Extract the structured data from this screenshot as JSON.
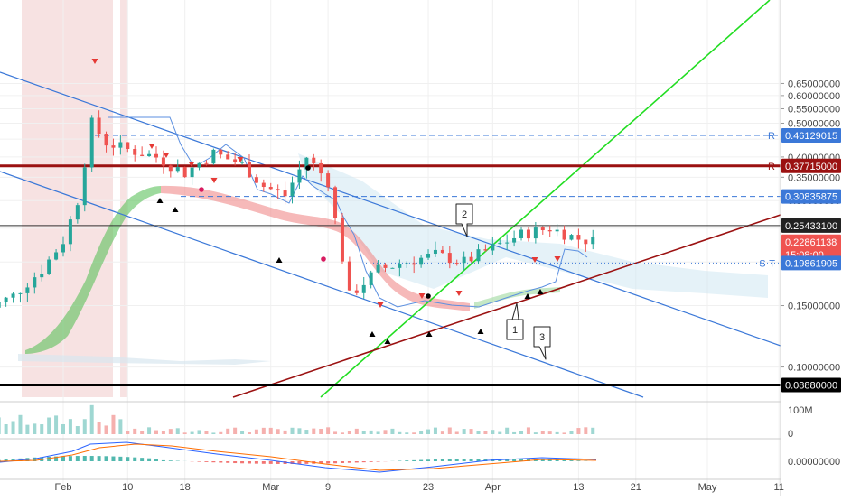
{
  "chart_data": {
    "type": "candlestick",
    "title": "",
    "x_axis": {
      "tick_labels": [
        "Feb",
        "10",
        "18",
        "Mar",
        "9",
        "23",
        "Apr",
        "13",
        "21",
        "May",
        "11"
      ],
      "range_dates": [
        "2020-01-21",
        "2020-05-13"
      ]
    },
    "y_axis": {
      "scale": "log",
      "range": [
        0.085,
        0.67
      ],
      "tick_labels": [
        "0.65000000",
        "0.60000000",
        "0.55000000",
        "0.50000000",
        "0.45000000",
        "0.40000000",
        "0.35000000",
        "0.30000000",
        "0.25000000",
        "0.20000000",
        "0.15000000",
        "0.10000000"
      ],
      "ticks": [
        0.65,
        0.6,
        0.55,
        0.5,
        0.45,
        0.4,
        0.35,
        0.3,
        0.25,
        0.2,
        0.15,
        0.1
      ]
    },
    "price_tags": [
      {
        "value": 0.46129015,
        "label": "0.46129015",
        "color": "#3b78d8",
        "marker": "R"
      },
      {
        "value": 0.37715,
        "label": "0.37715000",
        "color": "#9b1111",
        "marker": "R"
      },
      {
        "value": 0.30835875,
        "label": "0.30835875",
        "color": "#3b78d8"
      },
      {
        "value": 0.254331,
        "label": "0.25433100",
        "color": "#222222"
      },
      {
        "value": 0.22861138,
        "label": "0.22861138",
        "color": "#ef5350"
      },
      {
        "value": 0.21,
        "label": "15:08:00",
        "color": "#ef5350"
      },
      {
        "value": 0.19861905,
        "label": "0.19861905",
        "color": "#3b78d8",
        "marker": "S-T"
      },
      {
        "value": 0.0888,
        "label": "0.08880000",
        "color": "#000000"
      }
    ],
    "horizontal_lines": [
      {
        "value": 0.46129015,
        "style": "dashed",
        "color": "#3b78d8"
      },
      {
        "value": 0.37715,
        "style": "solid",
        "color": "#9b1111"
      },
      {
        "value": 0.30835875,
        "style": "dashed",
        "color": "#3b78d8"
      },
      {
        "value": 0.254331,
        "style": "solid",
        "color": "#333333"
      },
      {
        "value": 0.19861905,
        "style": "dotted",
        "color": "#3b78d8"
      },
      {
        "value": 0.0888,
        "style": "solid",
        "color": "#000000"
      }
    ],
    "annotations": [
      "1",
      "2",
      "3"
    ],
    "volume_panel": {
      "tick_labels": [
        "100M",
        "0"
      ]
    },
    "macd_panel": {
      "tick_labels": [
        "0.00000000"
      ]
    }
  }
}
